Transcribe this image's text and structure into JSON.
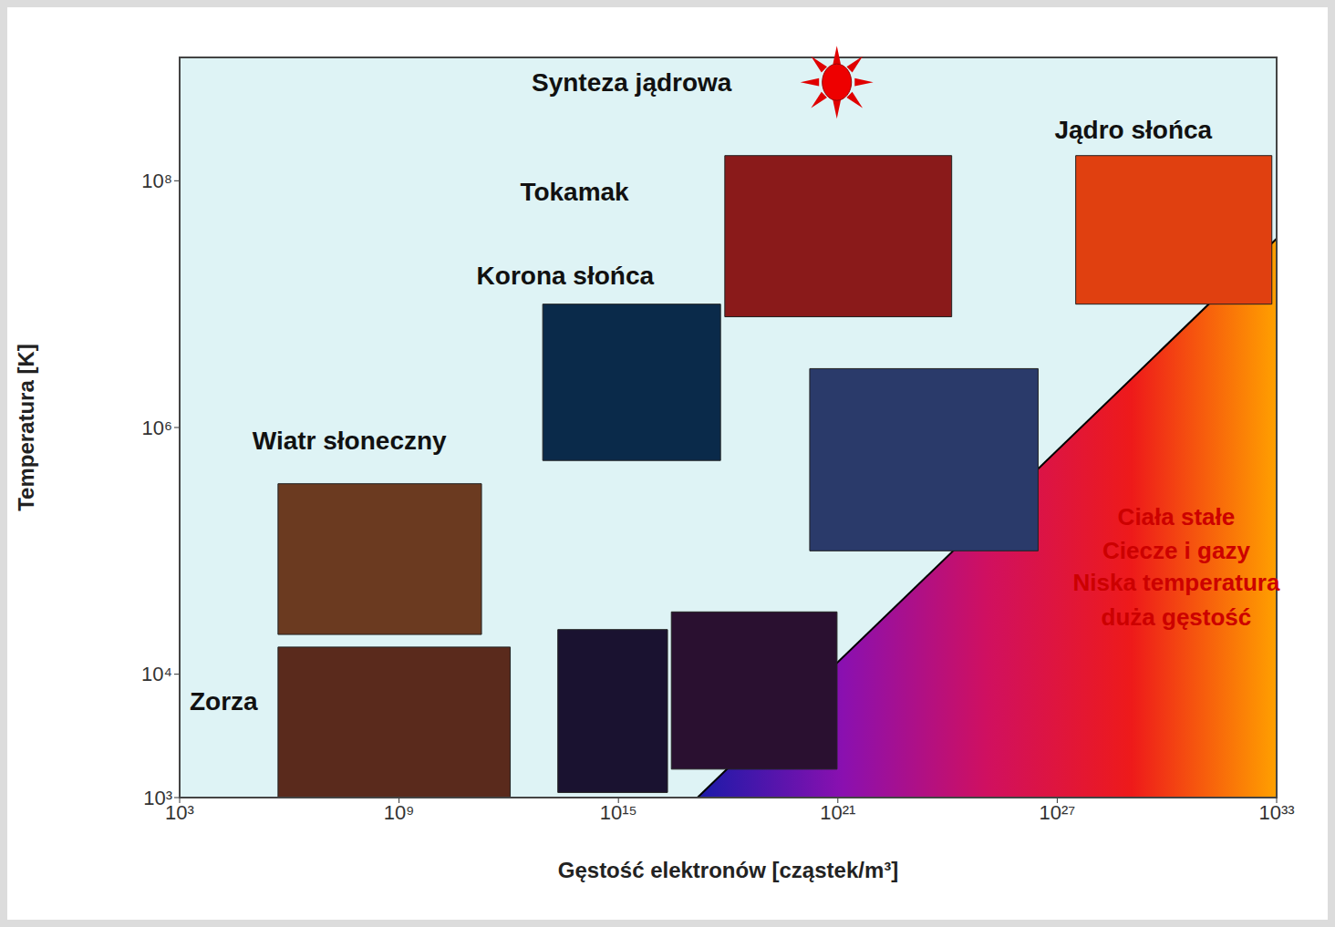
{
  "chart_data": {
    "type": "region_map",
    "x_label": "Gęstość elektronów  [cząstek/m³]",
    "y_label": "Temperatura [K]",
    "log": true,
    "grid": false,
    "xlim": [
      1000.0,
      1e+33
    ],
    "xticks": [
      {
        "value": 1000.0,
        "label": "10³"
      },
      {
        "value": 1000000000.0,
        "label": "10⁹"
      },
      {
        "value": 1000000000000000.0,
        "label": "10¹⁵"
      },
      {
        "value": 1e+21,
        "label": "10²¹"
      },
      {
        "value": 1e+27,
        "label": "10²⁷"
      },
      {
        "value": 1e+33,
        "label": "10³³"
      }
    ],
    "ylim": [
      1000.0,
      1000000000.0
    ],
    "yticks": [
      {
        "value": 1000.0,
        "label": "10³"
      },
      {
        "value": 10000.0,
        "label": "10⁴"
      },
      {
        "value": 1000000.0,
        "label": "10⁶"
      },
      {
        "value": 100000000.0,
        "label": "10⁸"
      }
    ],
    "boundary": {
      "x": [
        1.45e+17,
        1e+33
      ],
      "y": [
        1000.0,
        34000000.0
      ],
      "colors": [
        "#1a1aa8",
        "#8a10b0",
        "#d01060",
        "#ee1a1a",
        "#ffa000"
      ]
    },
    "regions": [
      {
        "x": [
          490000.0,
          1100000000000.0
        ],
        "y": [
          1000.0,
          16600.0
        ],
        "color": "#5a2a1c"
      },
      {
        "x": [
          490000.0,
          180000000000.0
        ],
        "y": [
          21000.0,
          350000.0
        ],
        "color": "#6b3a20"
      },
      {
        "x": [
          8500000000000.0,
          6.2e+17
        ],
        "y": [
          540000.0,
          10000000.0
        ],
        "color": "#0a2a4a"
      },
      {
        "x": [
          8.1e+17,
          1.3e+24
        ],
        "y": [
          7900000.0,
          160000000.0
        ],
        "color": "#8a1a1a"
      },
      {
        "x": [
          1.7e+20,
          3e+26
        ],
        "y": [
          100000.0,
          3000000.0
        ],
        "color": "#2a3a6a"
      },
      {
        "x": [
          22000000000000.0,
          2.2e+16
        ],
        "y": [
          1100.0,
          23000.0
        ],
        "color": "#1a1230"
      },
      {
        "x": [
          2.8e+16,
          9.5e+20
        ],
        "y": [
          1700.0,
          32000.0
        ],
        "color": "#2a1030"
      },
      {
        "x": [
          3.2e+27,
          7.4e+32
        ],
        "y": [
          10000000.0,
          160000000.0
        ],
        "color": "#e04010"
      }
    ],
    "annotations": [
      {
        "text": "Synteza jądrowa",
        "x": 2300000000000000.0,
        "y": 630000000.0,
        "color": "#111111",
        "marker": "sun"
      },
      {
        "text": "Tokamak",
        "x": 63000000000000.0,
        "y": 81000000.0,
        "color": "#111111"
      },
      {
        "text": "Korona słońca",
        "x": 35000000000000.0,
        "y": 17000000.0,
        "color": "#111111"
      },
      {
        "text": "Wiatr słoneczny",
        "x": 44000000.0,
        "y": 780000.0,
        "color": "#111111"
      },
      {
        "text": "Zorza",
        "x": 16000.0,
        "y": 6000.0,
        "color": "#111111"
      },
      {
        "text": "Jądro słońca",
        "x": 1.2e+29,
        "y": 260000000.0,
        "color": "#111111"
      },
      {
        "text": "Ciała stałe",
        "x": 1.8e+30,
        "y": 190000.0,
        "color": "#cc0000"
      },
      {
        "text": "Ciecze i gazy",
        "x": 1.8e+30,
        "y": 100000.0,
        "color": "#cc0000"
      },
      {
        "text": "Niska temperatura",
        "x": 1.8e+30,
        "y": 55000.0,
        "color": "#cc0000"
      },
      {
        "text": "duża gęstość",
        "x": 1.8e+30,
        "y": 29000.0,
        "color": "#cc0000"
      }
    ]
  }
}
